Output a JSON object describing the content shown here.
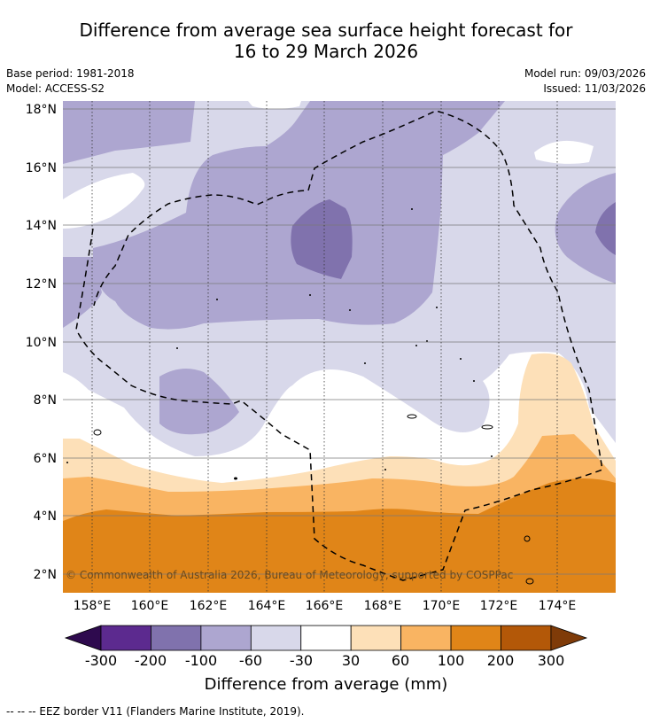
{
  "title": {
    "line1": "Difference from average sea surface height forecast for",
    "line2": "16 to 29 March 2026"
  },
  "meta": {
    "base_period": "Base period: 1981-2018",
    "model": "Model: ACCESS-S2",
    "model_run": "Model run: 09/03/2026",
    "issued": "Issued: 11/03/2026"
  },
  "map": {
    "lat_labels": [
      "18°N",
      "16°N",
      "14°N",
      "12°N",
      "10°N",
      "8°N",
      "6°N",
      "4°N",
      "2°N"
    ],
    "lon_labels": [
      "158°E",
      "160°E",
      "162°E",
      "164°E",
      "166°E",
      "168°E",
      "170°E",
      "172°E",
      "174°E"
    ],
    "copyright": "© Commonwealth of Australia 2026, Bureau of Meteorology, supported by COSPPac"
  },
  "colorbar": {
    "ticks": [
      "-300",
      "-200",
      "-100",
      "-60",
      "-30",
      "30",
      "60",
      "100",
      "200",
      "300"
    ],
    "label": "Difference from average (mm)",
    "colors": [
      "#2e0a4e",
      "#5c2a8f",
      "#8072ad",
      "#ada6d0",
      "#d8d8ea",
      "#ffffff",
      "#fde0b8",
      "#f9b462",
      "#e08518",
      "#b35808",
      "#7f3b08"
    ]
  },
  "legend": {
    "eez": "--  --  -- EEZ border V11 (Flanders Marine Institute, 2019)."
  }
}
